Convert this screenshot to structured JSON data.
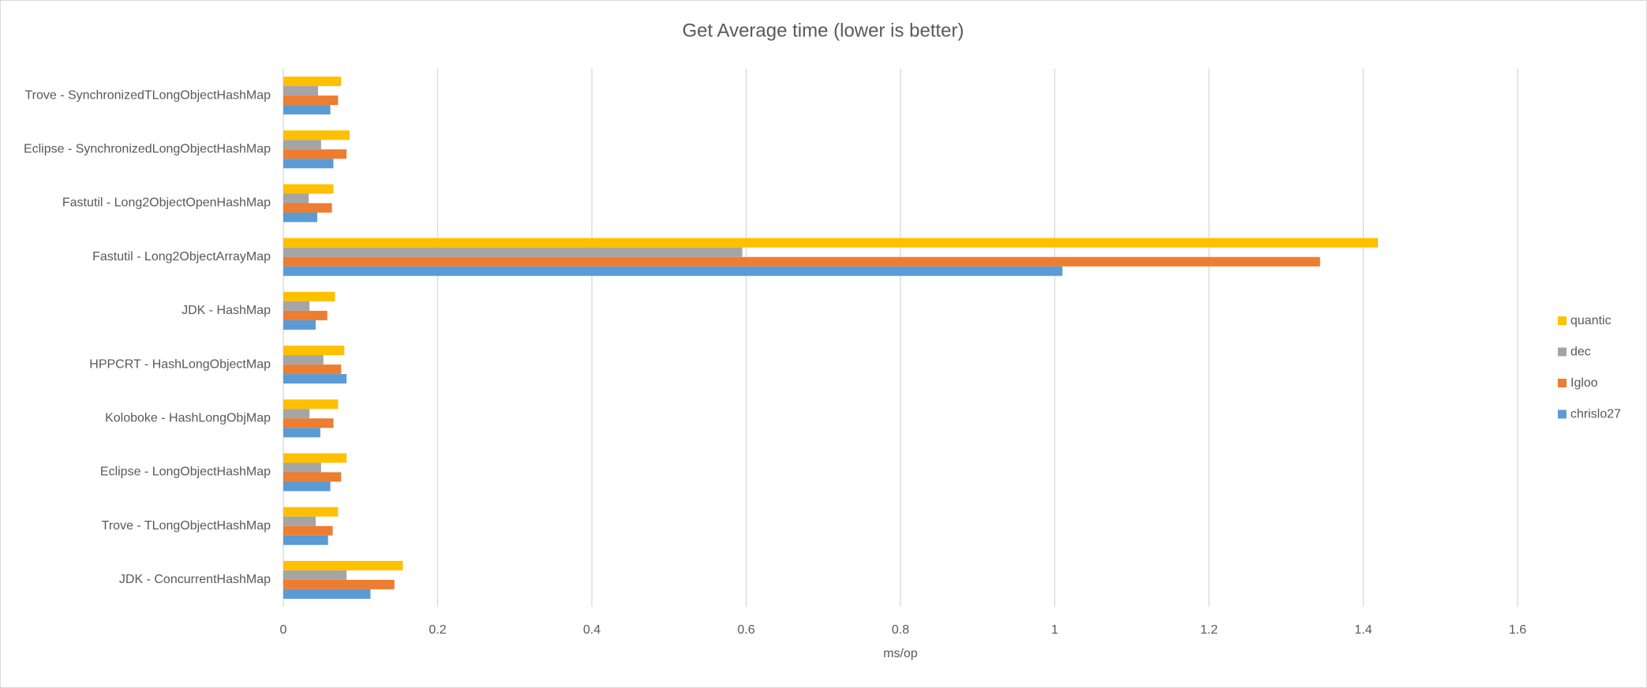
{
  "chart_data": {
    "type": "hbar",
    "title": "Get Average time (lower is better)",
    "x_label": "ms/op",
    "categories": [
      "Trove - SynchronizedTLongObjectHashMap",
      "Eclipse - SynchronizedLongObjectHashMap",
      "Fastutil - Long2ObjectOpenHashMap",
      "Fastutil - Long2ObjectArrayMap",
      "JDK - HashMap",
      "HPPCRT - HashLongObjectMap",
      "Koloboke - HashLongObjMap",
      "Eclipse - LongObjectHashMap",
      "Trove - TLongObjectHashMap",
      "JDK - ConcurrentHashMap"
    ],
    "series": [
      {
        "name": "quantic",
        "color": "#ffc000",
        "values": [
          0.075,
          0.086,
          0.065,
          1.419,
          0.067,
          0.079,
          0.071,
          0.082,
          0.071,
          0.155
        ]
      },
      {
        "name": "dec",
        "color": "#a5a5a5",
        "values": [
          0.045,
          0.049,
          0.033,
          0.595,
          0.034,
          0.052,
          0.034,
          0.049,
          0.042,
          0.082
        ]
      },
      {
        "name": "Igloo",
        "color": "#ed7d31",
        "values": [
          0.071,
          0.082,
          0.063,
          1.344,
          0.057,
          0.075,
          0.065,
          0.075,
          0.064,
          0.144
        ]
      },
      {
        "name": "chrislo27",
        "color": "#5b9bd5",
        "values": [
          0.061,
          0.065,
          0.044,
          1.01,
          0.042,
          0.082,
          0.048,
          0.061,
          0.058,
          0.113
        ]
      }
    ],
    "xlim": [
      0,
      1.6
    ],
    "xticks": [
      0,
      0.2,
      0.4,
      0.6,
      0.8,
      1,
      1.2,
      1.4,
      1.6
    ],
    "grid": true,
    "legend": "right"
  }
}
